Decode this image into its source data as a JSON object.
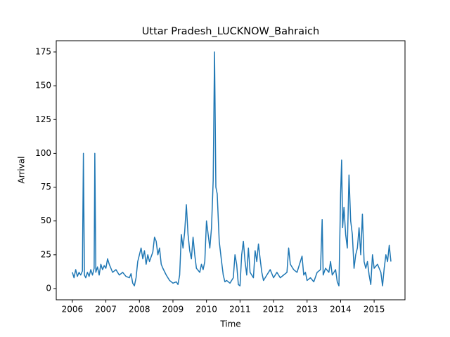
{
  "chart_data": {
    "type": "line",
    "title": "Uttar Pradesh_LUCKNOW_Bahraich",
    "x_label": "Time",
    "y_label": "Arrival",
    "x": [
      2006.0,
      2006.05,
      2006.1,
      2006.15,
      2006.2,
      2006.25,
      2006.3,
      2006.33,
      2006.36,
      2006.4,
      2006.45,
      2006.5,
      2006.55,
      2006.6,
      2006.65,
      2006.67,
      2006.7,
      2006.75,
      2006.8,
      2006.85,
      2006.9,
      2006.95,
      2007.0,
      2007.05,
      2007.1,
      2007.15,
      2007.2,
      2007.3,
      2007.4,
      2007.5,
      2007.6,
      2007.7,
      2007.75,
      2007.8,
      2007.85,
      2007.9,
      2007.95,
      2008.0,
      2008.05,
      2008.1,
      2008.15,
      2008.2,
      2008.25,
      2008.3,
      2008.4,
      2008.45,
      2008.5,
      2008.55,
      2008.6,
      2008.65,
      2008.7,
      2008.8,
      2008.9,
      2009.0,
      2009.1,
      2009.15,
      2009.2,
      2009.25,
      2009.3,
      2009.35,
      2009.4,
      2009.45,
      2009.5,
      2009.55,
      2009.6,
      2009.65,
      2009.7,
      2009.8,
      2009.85,
      2009.9,
      2009.95,
      2010.0,
      2010.05,
      2010.1,
      2010.15,
      2010.2,
      2010.24,
      2010.28,
      2010.32,
      2010.38,
      2010.45,
      2010.5,
      2010.55,
      2010.6,
      2010.7,
      2010.8,
      2010.85,
      2010.9,
      2010.95,
      2011.0,
      2011.05,
      2011.1,
      2011.15,
      2011.2,
      2011.25,
      2011.3,
      2011.4,
      2011.45,
      2011.5,
      2011.55,
      2011.6,
      2011.65,
      2011.7,
      2011.8,
      2011.9,
      2012.0,
      2012.1,
      2012.2,
      2012.3,
      2012.4,
      2012.45,
      2012.5,
      2012.6,
      2012.7,
      2012.8,
      2012.85,
      2012.9,
      2012.95,
      2013.0,
      2013.1,
      2013.2,
      2013.3,
      2013.4,
      2013.45,
      2013.48,
      2013.55,
      2013.65,
      2013.7,
      2013.75,
      2013.85,
      2013.9,
      2013.95,
      2014.0,
      2014.03,
      2014.06,
      2014.1,
      2014.15,
      2014.2,
      2014.25,
      2014.3,
      2014.35,
      2014.4,
      2014.45,
      2014.5,
      2014.55,
      2014.6,
      2014.65,
      2014.7,
      2014.75,
      2014.8,
      2014.85,
      2014.9,
      2014.95,
      2015.0,
      2015.1,
      2015.2,
      2015.25,
      2015.3,
      2015.35,
      2015.4,
      2015.45,
      2015.5
    ],
    "series": [
      {
        "name": "Arrival",
        "color": "#1f77b4",
        "values": [
          12,
          8,
          14,
          9,
          12,
          10,
          13,
          100,
          10,
          8,
          12,
          9,
          14,
          10,
          15,
          100,
          12,
          16,
          10,
          18,
          14,
          17,
          15,
          22,
          18,
          15,
          12,
          14,
          10,
          12,
          9,
          8,
          11,
          4,
          2,
          8,
          20,
          25,
          30,
          22,
          28,
          18,
          25,
          20,
          27,
          38,
          35,
          25,
          30,
          18,
          15,
          10,
          6,
          4,
          5,
          3,
          10,
          40,
          30,
          42,
          62,
          40,
          28,
          22,
          38,
          25,
          15,
          12,
          18,
          14,
          20,
          50,
          40,
          30,
          45,
          80,
          175,
          75,
          70,
          35,
          20,
          10,
          5,
          6,
          4,
          8,
          25,
          18,
          3,
          2,
          25,
          35,
          20,
          10,
          30,
          12,
          8,
          28,
          20,
          33,
          22,
          12,
          6,
          10,
          14,
          8,
          12,
          8,
          10,
          12,
          30,
          18,
          14,
          12,
          20,
          24,
          10,
          12,
          6,
          8,
          5,
          12,
          14,
          51,
          10,
          15,
          12,
          20,
          10,
          14,
          5,
          2,
          70,
          95,
          45,
          60,
          40,
          30,
          84,
          50,
          40,
          15,
          25,
          30,
          45,
          25,
          55,
          20,
          15,
          20,
          10,
          3,
          25,
          15,
          18,
          12,
          2,
          15,
          25,
          20,
          32,
          20
        ]
      }
    ],
    "xlim": [
      2005.52,
      2015.92
    ],
    "xticks": [
      2006,
      2007,
      2008,
      2009,
      2010,
      2011,
      2012,
      2013,
      2014,
      2015
    ],
    "ylim": [
      -8.3,
      183.3
    ],
    "yticks": [
      0,
      25,
      50,
      75,
      100,
      125,
      150,
      175
    ],
    "grid": false
  }
}
